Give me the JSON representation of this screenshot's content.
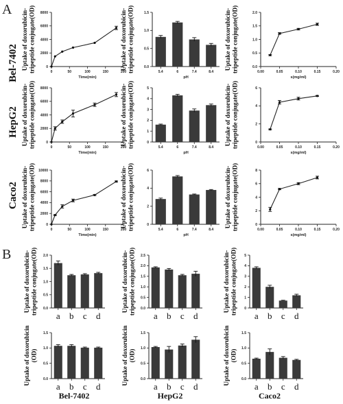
{
  "panels": {
    "A": {
      "letter": "A"
    },
    "B": {
      "letter": "B"
    }
  },
  "cell_lines": [
    "Bel-7402",
    "HepG2",
    "Caco2"
  ],
  "chart_data": [
    {
      "id": "A-Bel-time",
      "type": "line",
      "xlabel": "Time(min)",
      "ylabel": [
        "Uptake of doxorubicin-",
        "tripeptide conjugate(OD)"
      ],
      "xlim": [
        0,
        200
      ],
      "ylim": [
        0,
        8000
      ],
      "xticks": [
        0,
        50,
        100,
        150,
        200
      ],
      "yticks": [
        0,
        2000,
        4000,
        6000,
        8000
      ],
      "x": [
        0,
        10,
        30,
        60,
        120,
        180
      ],
      "y": [
        0,
        1500,
        2200,
        2800,
        3500,
        5700
      ],
      "err": [
        0,
        0,
        0,
        0,
        0,
        250
      ]
    },
    {
      "id": "A-Bel-pH",
      "type": "bar",
      "xlabel": "pH",
      "ylabel": [
        "Uptake of doxorubicin-",
        "tripeptide conjugate(OD)"
      ],
      "ylim": [
        0,
        1.5
      ],
      "yticks": [
        0.0,
        0.5,
        1.0,
        1.5
      ],
      "categories": [
        "5.4",
        "6",
        "7.4",
        "8.4"
      ],
      "values": [
        0.82,
        1.22,
        0.75,
        0.6
      ],
      "err": [
        0.04,
        0.03,
        0.05,
        0.04
      ]
    },
    {
      "id": "A-Bel-conc",
      "type": "line",
      "xlabel": "s(mg/ml)",
      "ylabel": [
        "Uptake of doxorubicin-",
        "tripeptide conjugate(OD)"
      ],
      "xlim": [
        0,
        0.2
      ],
      "ylim": [
        0,
        2.0
      ],
      "xticks": [
        0.0,
        0.05,
        0.1,
        0.15,
        0.2
      ],
      "yticks": [
        0.0,
        0.5,
        1.0,
        1.5,
        2.0
      ],
      "x": [
        0.025,
        0.05,
        0.1,
        0.15
      ],
      "y": [
        0.42,
        1.22,
        1.38,
        1.56
      ],
      "err": [
        0.02,
        0.03,
        0.03,
        0.04
      ]
    },
    {
      "id": "A-Hep-time",
      "type": "line",
      "xlabel": "Time(min)",
      "ylabel": [
        "Uptake of doxorubicin-",
        "tripeptide conjugate(OD)"
      ],
      "xlim": [
        0,
        200
      ],
      "ylim": [
        0,
        8000
      ],
      "xticks": [
        0,
        50,
        100,
        150,
        200
      ],
      "yticks": [
        0,
        2000,
        4000,
        6000,
        8000
      ],
      "x": [
        0,
        10,
        30,
        60,
        120,
        180
      ],
      "y": [
        0,
        2000,
        3000,
        4200,
        5500,
        7000
      ],
      "err": [
        0,
        250,
        250,
        500,
        250,
        300
      ]
    },
    {
      "id": "A-Hep-pH",
      "type": "bar",
      "xlabel": "pH",
      "ylabel": [
        "Uptake of doxorubicin-",
        "tripeptide conjugate(OD)"
      ],
      "ylim": [
        0,
        5
      ],
      "yticks": [
        0,
        1,
        2,
        3,
        4,
        5
      ],
      "categories": [
        "5.4",
        "6",
        "7.4",
        "8.4"
      ],
      "values": [
        1.6,
        4.3,
        2.9,
        3.4
      ],
      "err": [
        0.05,
        0.1,
        0.15,
        0.1
      ]
    },
    {
      "id": "A-Hep-conc",
      "type": "line",
      "xlabel": "s(mg/ml)",
      "ylabel": [
        "Uptake of doxorubicin-",
        "tripeptide conjugate(OD)"
      ],
      "xlim": [
        0,
        0.2
      ],
      "ylim": [
        0,
        6
      ],
      "xticks": [
        0.0,
        0.05,
        0.1,
        0.15,
        0.2
      ],
      "yticks": [
        0,
        2,
        4,
        6
      ],
      "x": [
        0.025,
        0.05,
        0.1,
        0.15
      ],
      "y": [
        1.4,
        4.4,
        4.8,
        5.1
      ],
      "err": [
        0.05,
        0.2,
        0.15,
        0.05
      ]
    },
    {
      "id": "A-Caco-time",
      "type": "line",
      "xlabel": "Time(min)",
      "ylabel": [
        "Uptake of doxorubicin-",
        "tripeptide conjugate(OD)"
      ],
      "xlim": [
        0,
        200
      ],
      "ylim": [
        0,
        10000
      ],
      "xticks": [
        0,
        50,
        100,
        150,
        200
      ],
      "yticks": [
        0,
        2000,
        4000,
        6000,
        8000,
        10000
      ],
      "x": [
        0,
        10,
        30,
        60,
        120,
        180
      ],
      "y": [
        0,
        1700,
        3300,
        4400,
        5400,
        7900
      ],
      "err": [
        0,
        100,
        300,
        250,
        100,
        100
      ]
    },
    {
      "id": "A-Caco-pH",
      "type": "bar",
      "xlabel": "pH",
      "ylabel": [
        "Uptake of doxorubicin-",
        "tripeptide conjugate(OD)"
      ],
      "ylim": [
        0,
        6
      ],
      "yticks": [
        0,
        2,
        4,
        6
      ],
      "categories": [
        "5.4",
        "6",
        "7.4",
        "8.4"
      ],
      "values": [
        2.8,
        5.3,
        3.3,
        3.8
      ],
      "err": [
        0.1,
        0.1,
        0.05,
        0.05
      ]
    },
    {
      "id": "A-Caco-conc",
      "type": "line",
      "xlabel": "s(mg/ml)",
      "ylabel": [
        "Uptake of doxorubicin-",
        "tripeptide conjugate(OD)"
      ],
      "xlim": [
        0,
        0.2
      ],
      "ylim": [
        0,
        8
      ],
      "xticks": [
        0.0,
        0.05,
        0.1,
        0.15,
        0.2
      ],
      "yticks": [
        0,
        2,
        4,
        6,
        8
      ],
      "x": [
        0.025,
        0.05,
        0.1,
        0.15
      ],
      "y": [
        2.2,
        5.2,
        6.0,
        6.9
      ],
      "err": [
        0.3,
        0.1,
        0.15,
        0.2
      ]
    },
    {
      "id": "B-Bel-conj",
      "type": "bar",
      "ylabel": [
        "Uptake of doxorubicin-",
        "tripeptide conjugate(OD)"
      ],
      "ylim": [
        0,
        2.0
      ],
      "yticks": [
        0.0,
        0.5,
        1.0,
        1.5,
        2.0
      ],
      "categories": [
        "a",
        "b",
        "c",
        "d"
      ],
      "values": [
        1.7,
        1.24,
        1.27,
        1.32
      ],
      "err": [
        0.08,
        0.03,
        0.03,
        0.03
      ]
    },
    {
      "id": "B-Hep-conj",
      "type": "bar",
      "ylabel": [
        "Uptake of doxorubicin-",
        "tripeptide conjugate(OD)"
      ],
      "ylim": [
        0,
        2.5
      ],
      "yticks": [
        0.0,
        0.5,
        1.0,
        1.5,
        2.0,
        2.5
      ],
      "categories": [
        "a",
        "b",
        "c",
        "d"
      ],
      "values": [
        1.92,
        1.82,
        1.55,
        1.62
      ],
      "err": [
        0.03,
        0.05,
        0.04,
        0.12
      ]
    },
    {
      "id": "B-Caco-conj",
      "type": "bar",
      "ylabel": [
        "Uptake of doxorubicin-",
        "tripeptide conjugate(OD)"
      ],
      "ylim": [
        0,
        5
      ],
      "yticks": [
        0,
        1,
        2,
        3,
        4,
        5
      ],
      "categories": [
        "a",
        "b",
        "c",
        "d"
      ],
      "values": [
        3.8,
        2.0,
        0.7,
        1.2
      ],
      "err": [
        0.1,
        0.15,
        0.03,
        0.1
      ]
    },
    {
      "id": "B-Bel-dox",
      "type": "bar",
      "ylabel": [
        "Uptake of doxorubicin",
        "(OD)"
      ],
      "ylim": [
        0,
        1.5
      ],
      "yticks": [
        0.0,
        0.5,
        1.0,
        1.5
      ],
      "categories": [
        "a",
        "b",
        "c",
        "d"
      ],
      "values": [
        1.07,
        1.07,
        1.01,
        1.01
      ],
      "err": [
        0.04,
        0.04,
        0.02,
        0.02
      ]
    },
    {
      "id": "B-Hep-dox",
      "type": "bar",
      "ylabel": [
        "Uptake of doxorubicin",
        "(OD)"
      ],
      "ylim": [
        0,
        1.5
      ],
      "yticks": [
        0.0,
        0.5,
        1.0,
        1.5
      ],
      "categories": [
        "a",
        "b",
        "c",
        "d"
      ],
      "values": [
        1.03,
        0.95,
        1.08,
        1.27
      ],
      "err": [
        0.02,
        0.1,
        0.05,
        0.1
      ]
    },
    {
      "id": "B-Caco-dox",
      "type": "bar",
      "ylabel": [
        "Uptake of doxorubicin",
        "(OD)"
      ],
      "ylim": [
        0,
        1.5
      ],
      "yticks": [
        0.0,
        0.5,
        1.0,
        1.5
      ],
      "categories": [
        "a",
        "b",
        "c",
        "d"
      ],
      "values": [
        0.65,
        0.87,
        0.68,
        0.61
      ],
      "err": [
        0.02,
        0.1,
        0.04,
        0.02
      ]
    }
  ]
}
